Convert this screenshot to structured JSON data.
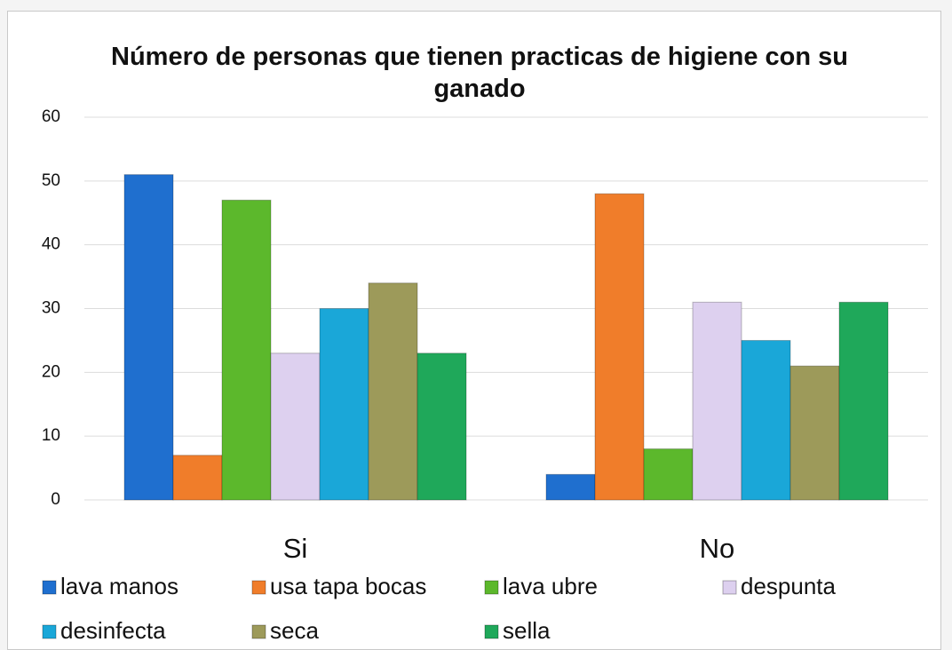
{
  "chart_data": {
    "type": "bar",
    "title": "Número de personas que tienen practicas de higiene con su ganado",
    "categories": [
      "Si",
      "No"
    ],
    "series": [
      {
        "name": "lava manos",
        "color": "#1f6fcf",
        "values": [
          51,
          4
        ]
      },
      {
        "name": "usa tapa bocas",
        "color": "#f07d2a",
        "values": [
          7,
          48
        ]
      },
      {
        "name": "lava ubre",
        "color": "#5cb82c",
        "values": [
          47,
          8
        ]
      },
      {
        "name": "despunta",
        "color": "#ddd0ef",
        "values": [
          23,
          31
        ]
      },
      {
        "name": "desinfecta",
        "color": "#1aa7d8",
        "values": [
          30,
          25
        ]
      },
      {
        "name": "seca",
        "color": "#9d9a5a",
        "values": [
          34,
          21
        ]
      },
      {
        "name": "sella",
        "color": "#1fa85a",
        "values": [
          23,
          31
        ]
      }
    ],
    "ylim": [
      0,
      60
    ],
    "yticks": [
      0,
      10,
      20,
      30,
      40,
      50,
      60
    ],
    "grid": true,
    "legend": "bottom"
  }
}
